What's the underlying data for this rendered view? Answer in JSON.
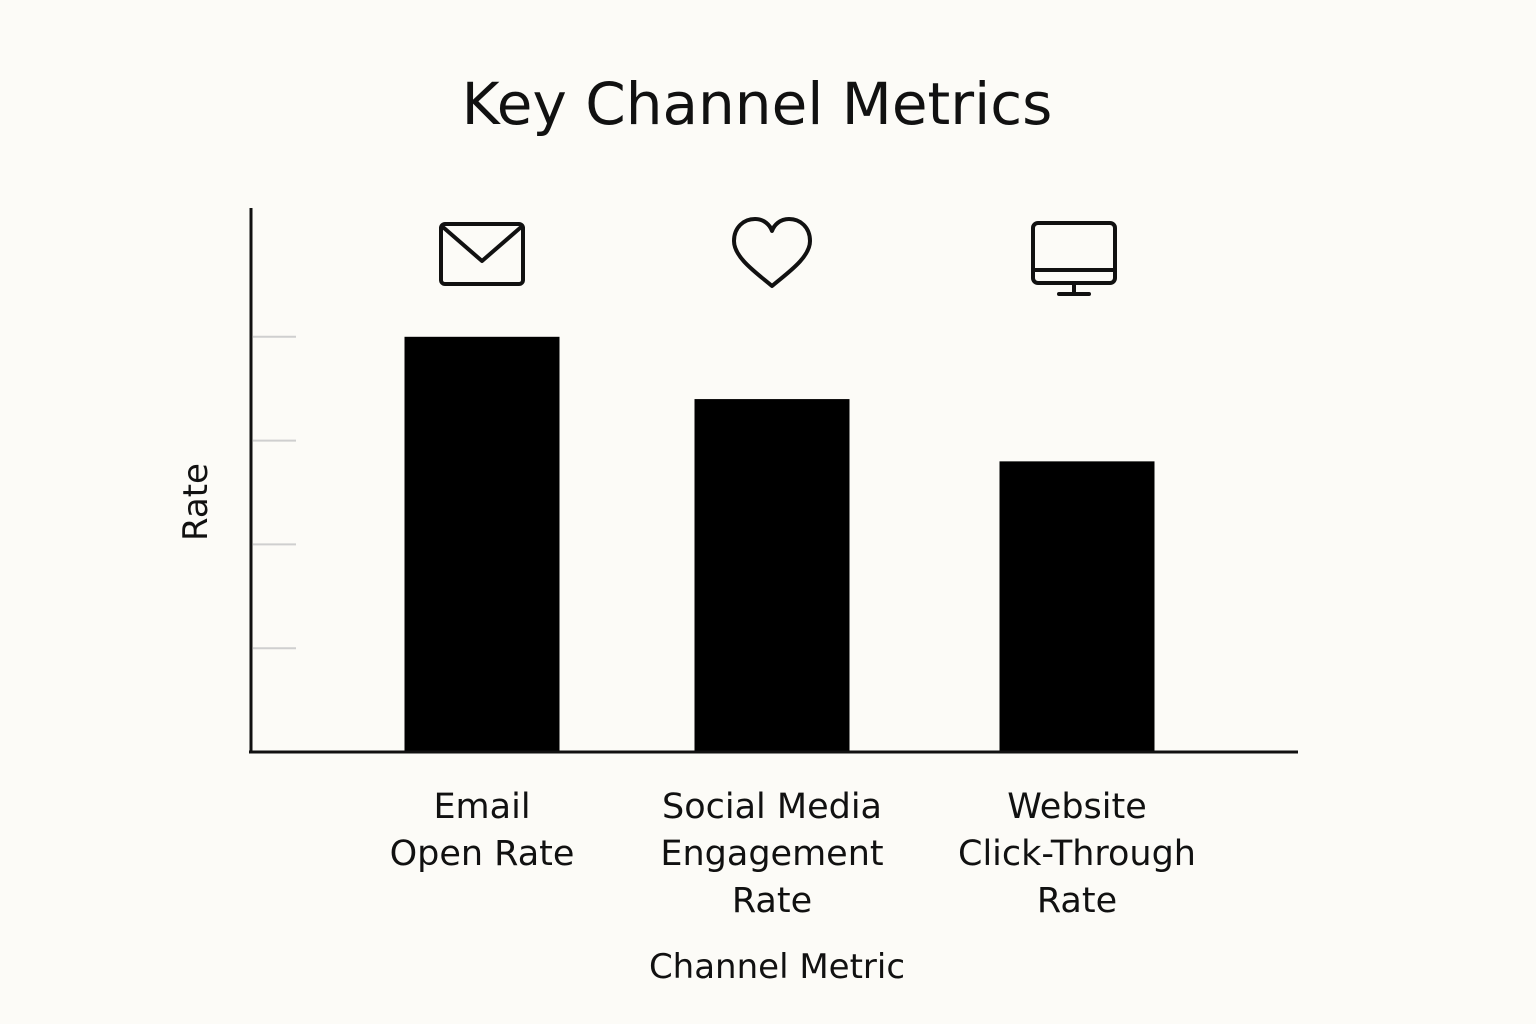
{
  "chart_data": {
    "type": "bar",
    "title": "Key Channel Metrics",
    "xlabel": "Channel Metric",
    "ylabel": "Rate",
    "categories": [
      [
        "Email",
        "Open Rate"
      ],
      [
        "Social Media",
        "Engagement",
        "Rate"
      ],
      [
        "Website",
        "Click-Through",
        "Rate"
      ]
    ],
    "values": [
      4,
      3.4,
      2.8
    ],
    "ylim": [
      0,
      5
    ],
    "yticks": [
      1,
      2,
      3,
      4
    ],
    "ytick_labels_shown": false,
    "grid": false,
    "legend": "none",
    "bar_color": "#000000",
    "category_icons": [
      "envelope-icon",
      "heart-icon",
      "monitor-icon"
    ]
  }
}
